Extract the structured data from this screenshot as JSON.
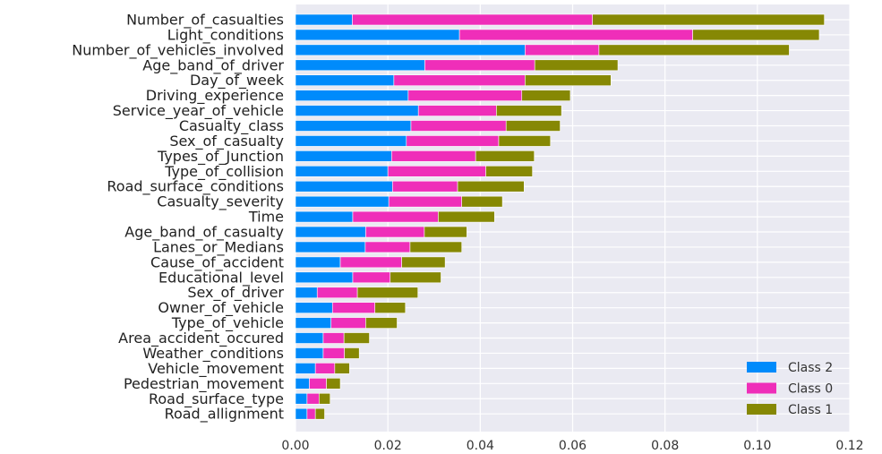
{
  "chart_data": {
    "type": "bar",
    "orientation": "horizontal",
    "stacked": true,
    "categories": [
      "Number_of_casualties",
      "Light_conditions",
      "Number_of_vehicles_involved",
      "Age_band_of_driver",
      "Day_of_week",
      "Driving_experience",
      "Service_year_of_vehicle",
      "Casualty_class",
      "Sex_of_casualty",
      "Types_of_Junction",
      "Type_of_collision",
      "Road_surface_conditions",
      "Casualty_severity",
      "Time",
      "Age_band_of_casualty",
      "Lanes_or_Medians",
      "Cause_of_accident",
      "Educational_level",
      "Sex_of_driver",
      "Owner_of_vehicle",
      "Type_of_vehicle",
      "Area_accident_occured",
      "Weather_conditions",
      "Vehicle_movement",
      "Pedestrian_movement",
      "Road_surface_type",
      "Road_allignment"
    ],
    "series": [
      {
        "name": "Class 2",
        "color": "#008bfb",
        "values": [
          0.0123,
          0.0355,
          0.0497,
          0.028,
          0.0213,
          0.0244,
          0.0266,
          0.025,
          0.024,
          0.0208,
          0.02,
          0.021,
          0.0202,
          0.0124,
          0.0152,
          0.0151,
          0.0097,
          0.0124,
          0.0047,
          0.008,
          0.0077,
          0.006,
          0.006,
          0.0043,
          0.003,
          0.0025,
          0.0025
        ]
      },
      {
        "name": "Class 0",
        "color": "#ef2eb9",
        "values": [
          0.052,
          0.0505,
          0.016,
          0.0238,
          0.0284,
          0.0246,
          0.0169,
          0.0206,
          0.02,
          0.0182,
          0.0212,
          0.0141,
          0.0158,
          0.0185,
          0.0127,
          0.0097,
          0.0133,
          0.0081,
          0.0087,
          0.0092,
          0.0075,
          0.0045,
          0.0046,
          0.0042,
          0.0037,
          0.0026,
          0.0018
        ]
      },
      {
        "name": "Class 1",
        "color": "#868804",
        "values": [
          0.0502,
          0.0274,
          0.0412,
          0.018,
          0.0186,
          0.0105,
          0.0141,
          0.0117,
          0.0112,
          0.0127,
          0.0101,
          0.0144,
          0.0088,
          0.0122,
          0.0092,
          0.0112,
          0.0094,
          0.011,
          0.0131,
          0.0066,
          0.0068,
          0.0055,
          0.0032,
          0.0032,
          0.003,
          0.0024,
          0.002
        ]
      }
    ],
    "xlim": [
      0,
      0.12
    ],
    "x_ticks": [
      "0.00",
      "0.02",
      "0.04",
      "0.06",
      "0.08",
      "0.10",
      "0.12"
    ],
    "tick_values": [
      0,
      0.02,
      0.04,
      0.06,
      0.08,
      0.1,
      0.12
    ],
    "legend_order": [
      "Class 2",
      "Class 0",
      "Class 1"
    ],
    "legend_position": "bottom-right",
    "grid": true,
    "background_color": "#eaeaf2",
    "grid_color": "#ffffff"
  }
}
